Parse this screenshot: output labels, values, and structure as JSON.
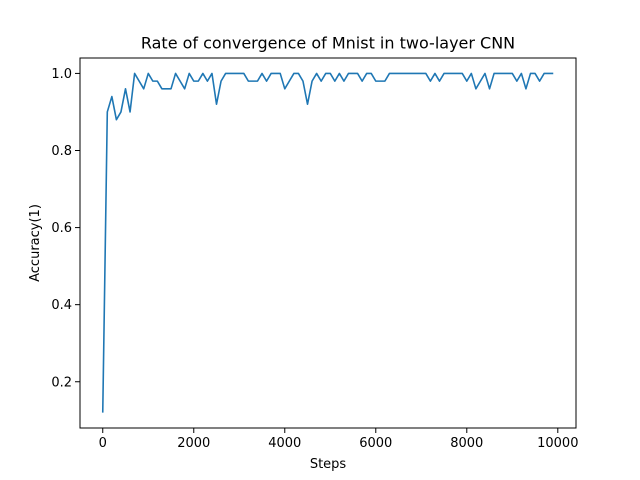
{
  "chart_data": {
    "type": "line",
    "title": "Rate of convergence of Mnist in two-layer CNN",
    "xlabel": "Steps",
    "ylabel": "Accuracy(1)",
    "xlim": [
      -500,
      10400
    ],
    "ylim": [
      0.08,
      1.04
    ],
    "xticks": [
      0,
      2000,
      4000,
      6000,
      8000,
      10000
    ],
    "xtick_labels": [
      "0",
      "2000",
      "4000",
      "6000",
      "8000",
      "10000"
    ],
    "yticks": [
      0.2,
      0.4,
      0.6,
      0.8,
      1.0
    ],
    "ytick_labels": [
      "0.2",
      "0.4",
      "0.6",
      "0.8",
      "1.0"
    ],
    "grid": false,
    "legend": "none",
    "line_color": "#1f77b4",
    "series": [
      {
        "x": [
          0,
          100,
          200,
          300,
          400,
          500,
          600,
          700,
          800,
          900,
          1000,
          1100,
          1200,
          1300,
          1400,
          1500,
          1600,
          1700,
          1800,
          1900,
          2000,
          2100,
          2200,
          2300,
          2400,
          2500,
          2600,
          2700,
          2800,
          2900,
          3000,
          3100,
          3200,
          3300,
          3400,
          3500,
          3600,
          3700,
          3800,
          3900,
          4000,
          4100,
          4200,
          4300,
          4400,
          4500,
          4600,
          4700,
          4800,
          4900,
          5000,
          5100,
          5200,
          5300,
          5400,
          5500,
          5600,
          5700,
          5800,
          5900,
          6000,
          6100,
          6200,
          6300,
          6400,
          6500,
          6600,
          6700,
          6800,
          6900,
          7000,
          7100,
          7200,
          7300,
          7400,
          7500,
          7600,
          7700,
          7800,
          7900,
          8000,
          8100,
          8200,
          8300,
          8400,
          8500,
          8600,
          8700,
          8800,
          8900,
          9000,
          9100,
          9200,
          9300,
          9400,
          9500,
          9600,
          9700,
          9800,
          9900
        ],
        "values": [
          0.12,
          0.9,
          0.94,
          0.88,
          0.9,
          0.96,
          0.9,
          1.0,
          0.98,
          0.96,
          1.0,
          0.98,
          0.98,
          0.96,
          0.96,
          0.96,
          1.0,
          0.98,
          0.96,
          1.0,
          0.98,
          0.98,
          1.0,
          0.98,
          1.0,
          0.92,
          0.98,
          1.0,
          1.0,
          1.0,
          1.0,
          1.0,
          0.98,
          0.98,
          0.98,
          1.0,
          0.98,
          1.0,
          1.0,
          1.0,
          0.96,
          0.98,
          1.0,
          1.0,
          0.98,
          0.92,
          0.98,
          1.0,
          0.98,
          1.0,
          1.0,
          0.98,
          1.0,
          0.98,
          1.0,
          1.0,
          1.0,
          0.98,
          1.0,
          1.0,
          0.98,
          0.98,
          0.98,
          1.0,
          1.0,
          1.0,
          1.0,
          1.0,
          1.0,
          1.0,
          1.0,
          1.0,
          0.98,
          1.0,
          0.98,
          1.0,
          1.0,
          1.0,
          1.0,
          1.0,
          0.98,
          1.0,
          0.96,
          0.98,
          1.0,
          0.96,
          1.0,
          1.0,
          1.0,
          1.0,
          1.0,
          0.98,
          1.0,
          0.96,
          1.0,
          1.0,
          0.98,
          1.0,
          1.0,
          1.0
        ]
      }
    ]
  }
}
